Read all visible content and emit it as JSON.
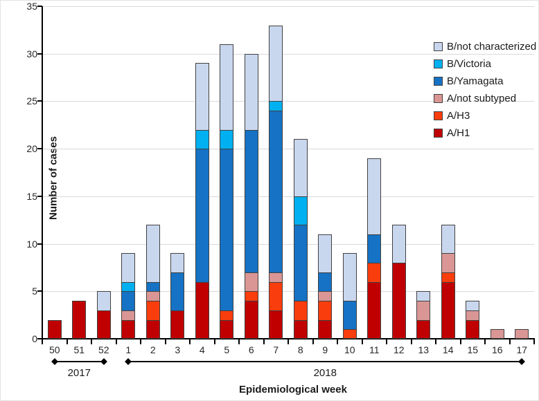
{
  "figure": {
    "background": "#ffffff"
  },
  "chart_data": {
    "type": "bar",
    "stacked": true,
    "title": "",
    "xlabel": "Epidemiological week",
    "ylabel": "Number of cases",
    "ylim": [
      0,
      35
    ],
    "ytick_step": 5,
    "grid": "horizontal-gridlines-on",
    "legend_position": "inside-top-right",
    "categories": [
      "50",
      "51",
      "52",
      "1",
      "2",
      "3",
      "4",
      "5",
      "6",
      "7",
      "8",
      "9",
      "10",
      "11",
      "12",
      "13",
      "14",
      "15",
      "16",
      "17"
    ],
    "year_spans": [
      {
        "label": "2017",
        "from": "50",
        "to": "52"
      },
      {
        "label": "2018",
        "from": "1",
        "to": "17"
      }
    ],
    "series": [
      {
        "name": "A/H1",
        "color": "#c00000",
        "values": [
          2,
          4,
          3,
          2,
          2,
          3,
          6,
          2,
          4,
          3,
          2,
          2,
          0,
          6,
          8,
          2,
          6,
          2,
          0,
          0
        ]
      },
      {
        "name": "A/H3",
        "color": "#f93d0d",
        "values": [
          0,
          0,
          0,
          0,
          2,
          0,
          0,
          1,
          1,
          3,
          2,
          2,
          1,
          2,
          0,
          0,
          1,
          0,
          0,
          0
        ]
      },
      {
        "name": "A/not subtyped",
        "color": "#d99694",
        "values": [
          0,
          0,
          0,
          1,
          1,
          0,
          0,
          0,
          2,
          1,
          0,
          1,
          0,
          0,
          0,
          2,
          2,
          1,
          1,
          1
        ]
      },
      {
        "name": "B/Yamagata",
        "color": "#1572c4",
        "values": [
          0,
          0,
          0,
          2,
          1,
          4,
          14,
          17,
          15,
          17,
          8,
          2,
          3,
          3,
          0,
          0,
          0,
          0,
          0,
          0
        ]
      },
      {
        "name": "B/Victoria",
        "color": "#00b0f0",
        "values": [
          0,
          0,
          0,
          1,
          0,
          0,
          2,
          2,
          0,
          1,
          3,
          0,
          0,
          0,
          0,
          0,
          0,
          0,
          0,
          0
        ]
      },
      {
        "name": "B/not characterized",
        "color": "#c9d7ee",
        "values": [
          0,
          0,
          2,
          3,
          6,
          2,
          7,
          9,
          8,
          8,
          6,
          4,
          5,
          8,
          4,
          1,
          3,
          1,
          0,
          0
        ]
      }
    ],
    "totals": [
      2,
      4,
      5,
      9,
      12,
      9,
      29,
      31,
      30,
      33,
      21,
      11,
      9,
      19,
      12,
      5,
      12,
      4,
      1,
      1
    ],
    "legend_order_top_to_bottom": [
      "B/not characterized",
      "B/Victoria",
      "B/Yamagata",
      "A/not subtyped",
      "A/H3",
      "A/H1"
    ],
    "colors": {
      "axis": "#000000",
      "gridline": "#d9d9d9",
      "bar_border": "#404040",
      "tick_label": "#262626"
    }
  }
}
